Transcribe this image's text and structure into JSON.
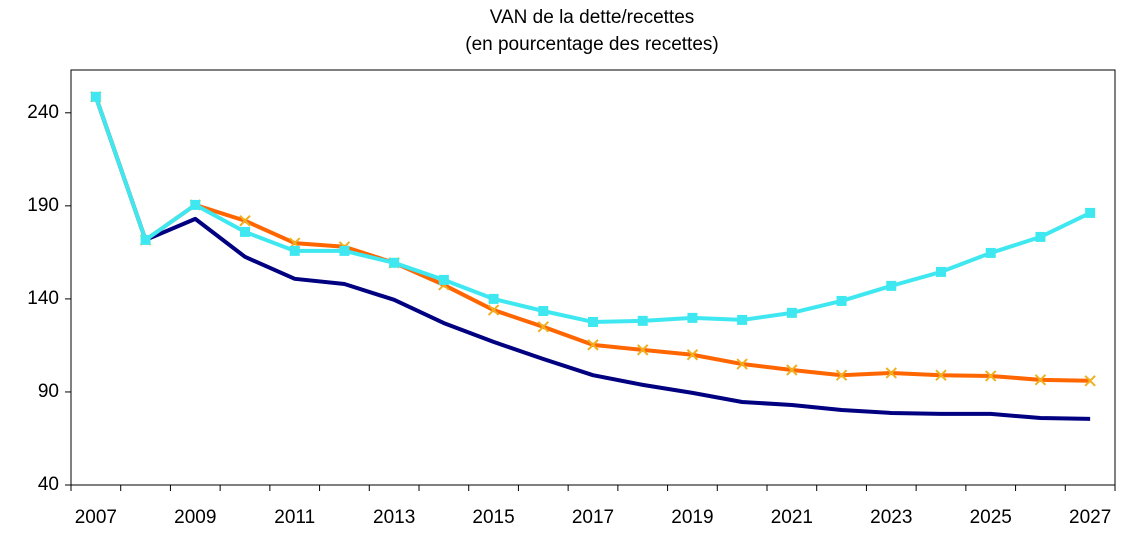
{
  "chart_data": {
    "type": "line",
    "title": "VAN de la dette/recettes",
    "subtitle": "(en pourcentage des recettes)",
    "categories": [
      "2007",
      null,
      "2009",
      null,
      "2011",
      null,
      "2013",
      null,
      "2015",
      null,
      "2017",
      null,
      "2019",
      null,
      "2021",
      null,
      "2023",
      null,
      "2025",
      null,
      "2027"
    ],
    "ylim": [
      40,
      263
    ],
    "yticks": [
      40,
      90,
      140,
      190,
      240
    ],
    "series": [
      {
        "color": "#000080",
        "marker": "none",
        "values": [
          248.6,
          171.7,
          183,
          162.6,
          150.8,
          148,
          139.5,
          127,
          116.9,
          107.7,
          99,
          93.8,
          89.5,
          84.6,
          83,
          80.3,
          78.7,
          78.2,
          78.2,
          76,
          75.5
        ]
      },
      {
        "color": "#ff6600",
        "marker": "x",
        "values": [
          248.6,
          171.7,
          190.5,
          182,
          170,
          168,
          159.4,
          147.5,
          134,
          125,
          115.3,
          112.6,
          110,
          105,
          101.8,
          99,
          100.2,
          99,
          98.6,
          96.5,
          96
        ]
      },
      {
        "color": "#3fe8f0",
        "marker": "square",
        "values": [
          248.6,
          171.7,
          190.5,
          176,
          165.8,
          165.8,
          159.4,
          150.2,
          140,
          133.5,
          127.6,
          128.2,
          129.8,
          128.7,
          132.5,
          138.9,
          147,
          154.5,
          164.7,
          173.3,
          186.2
        ]
      }
    ]
  }
}
